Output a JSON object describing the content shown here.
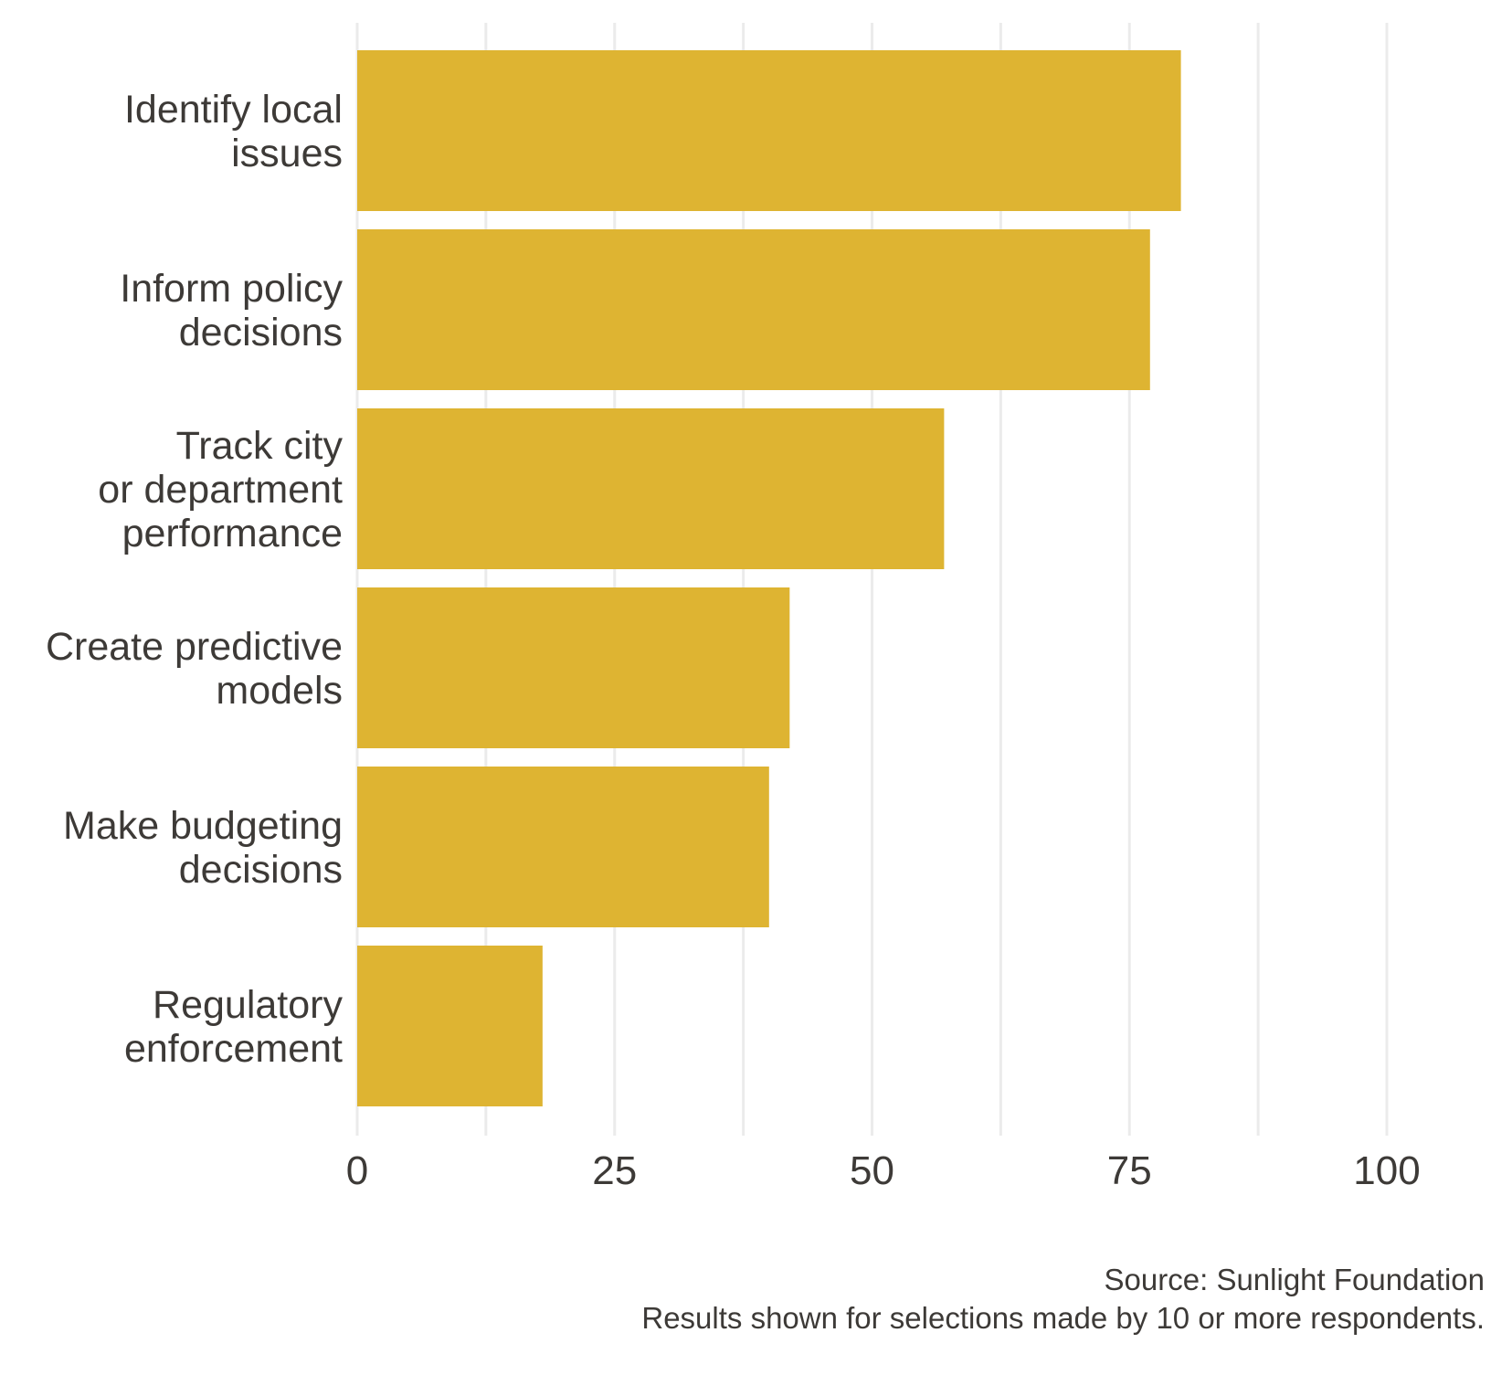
{
  "chart_data": {
    "type": "bar",
    "orientation": "horizontal",
    "categories": [
      [
        "Identify local",
        "issues"
      ],
      [
        "Inform policy",
        "decisions"
      ],
      [
        "Track city",
        "or department",
        "performance"
      ],
      [
        "Create predictive",
        "models"
      ],
      [
        "Make budgeting",
        "decisions"
      ],
      [
        "Regulatory",
        "enforcement"
      ]
    ],
    "values": [
      80,
      77,
      57,
      42,
      40,
      18
    ],
    "title": "",
    "xlabel": "",
    "ylabel": "",
    "xlim": [
      0,
      100
    ],
    "xticks": [
      0,
      25,
      50,
      75,
      100
    ],
    "minor_gridlines": [
      12.5,
      37.5,
      62.5,
      87.5
    ],
    "grid": true,
    "legend": "none",
    "bar_color": "#deb432",
    "grid_color": "#ebebeb",
    "text_color": "#3d3a37"
  },
  "caption": {
    "source": "Source: Sunlight Foundation",
    "note": "Results shown for selections made by 10 or more respondents."
  }
}
